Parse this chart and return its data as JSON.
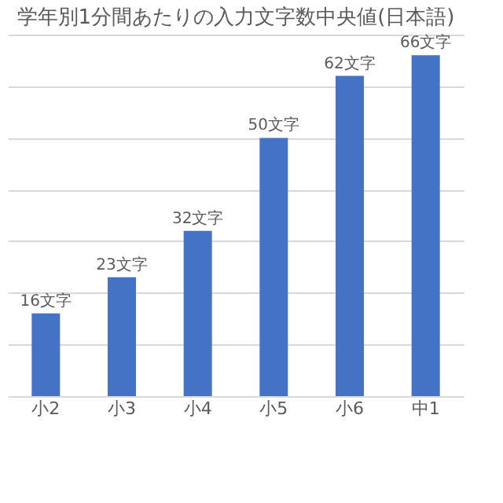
{
  "chart_data": {
    "type": "bar",
    "title": "学年別1分間あたりの入力文字数中央値(日本語)",
    "categories": [
      "小2",
      "小3",
      "小4",
      "小5",
      "小6",
      "中1"
    ],
    "values": [
      16,
      23,
      32,
      50,
      62,
      66
    ],
    "value_labels": [
      "16文字",
      "23文字",
      "32文字",
      "50文字",
      "62文字",
      "66文字"
    ],
    "color": "#4472c4",
    "grid": "y",
    "tick_labels": "x"
  }
}
